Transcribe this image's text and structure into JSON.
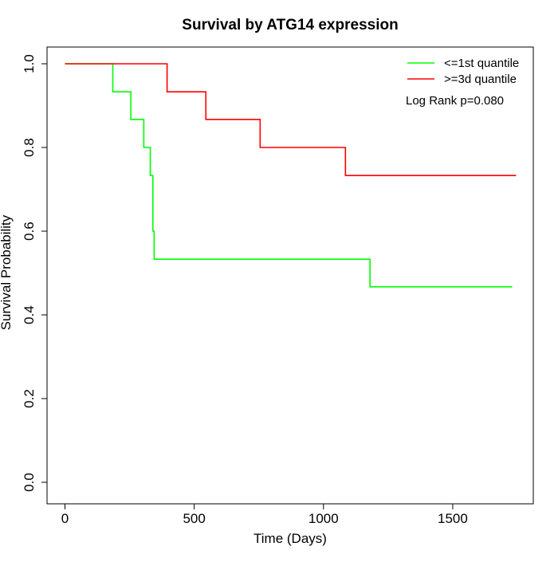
{
  "chart_data": {
    "type": "line",
    "step": true,
    "title": "Survival by ATG14 expression",
    "xlabel": "Time (Days)",
    "ylabel": "Survival Probability",
    "xlim": [
      0,
      1800
    ],
    "ylim": [
      0,
      1
    ],
    "xticks": [
      0,
      500,
      1000,
      1500
    ],
    "yticks": [
      0.0,
      0.2,
      0.4,
      0.6,
      0.8,
      1.0
    ],
    "ytick_labels": [
      "0.0",
      "0.2",
      "0.4",
      "0.6",
      "0.8",
      "1.0"
    ],
    "grid": false,
    "legend_position": "top-right",
    "annotation": "Log Rank p=0.080",
    "series": [
      {
        "name": "<=1st quantile",
        "color": "#00ff00",
        "x": [
          0,
          185,
          255,
          305,
          330,
          340,
          345,
          1180,
          1730
        ],
        "y": [
          1.0,
          0.933,
          0.867,
          0.8,
          0.733,
          0.6,
          0.533,
          0.467,
          0.467
        ]
      },
      {
        "name": ">=3d quantile",
        "color": "#ff0000",
        "x": [
          0,
          395,
          545,
          755,
          1085,
          1745
        ],
        "y": [
          1.0,
          0.933,
          0.867,
          0.8,
          0.733,
          0.733
        ]
      }
    ]
  }
}
